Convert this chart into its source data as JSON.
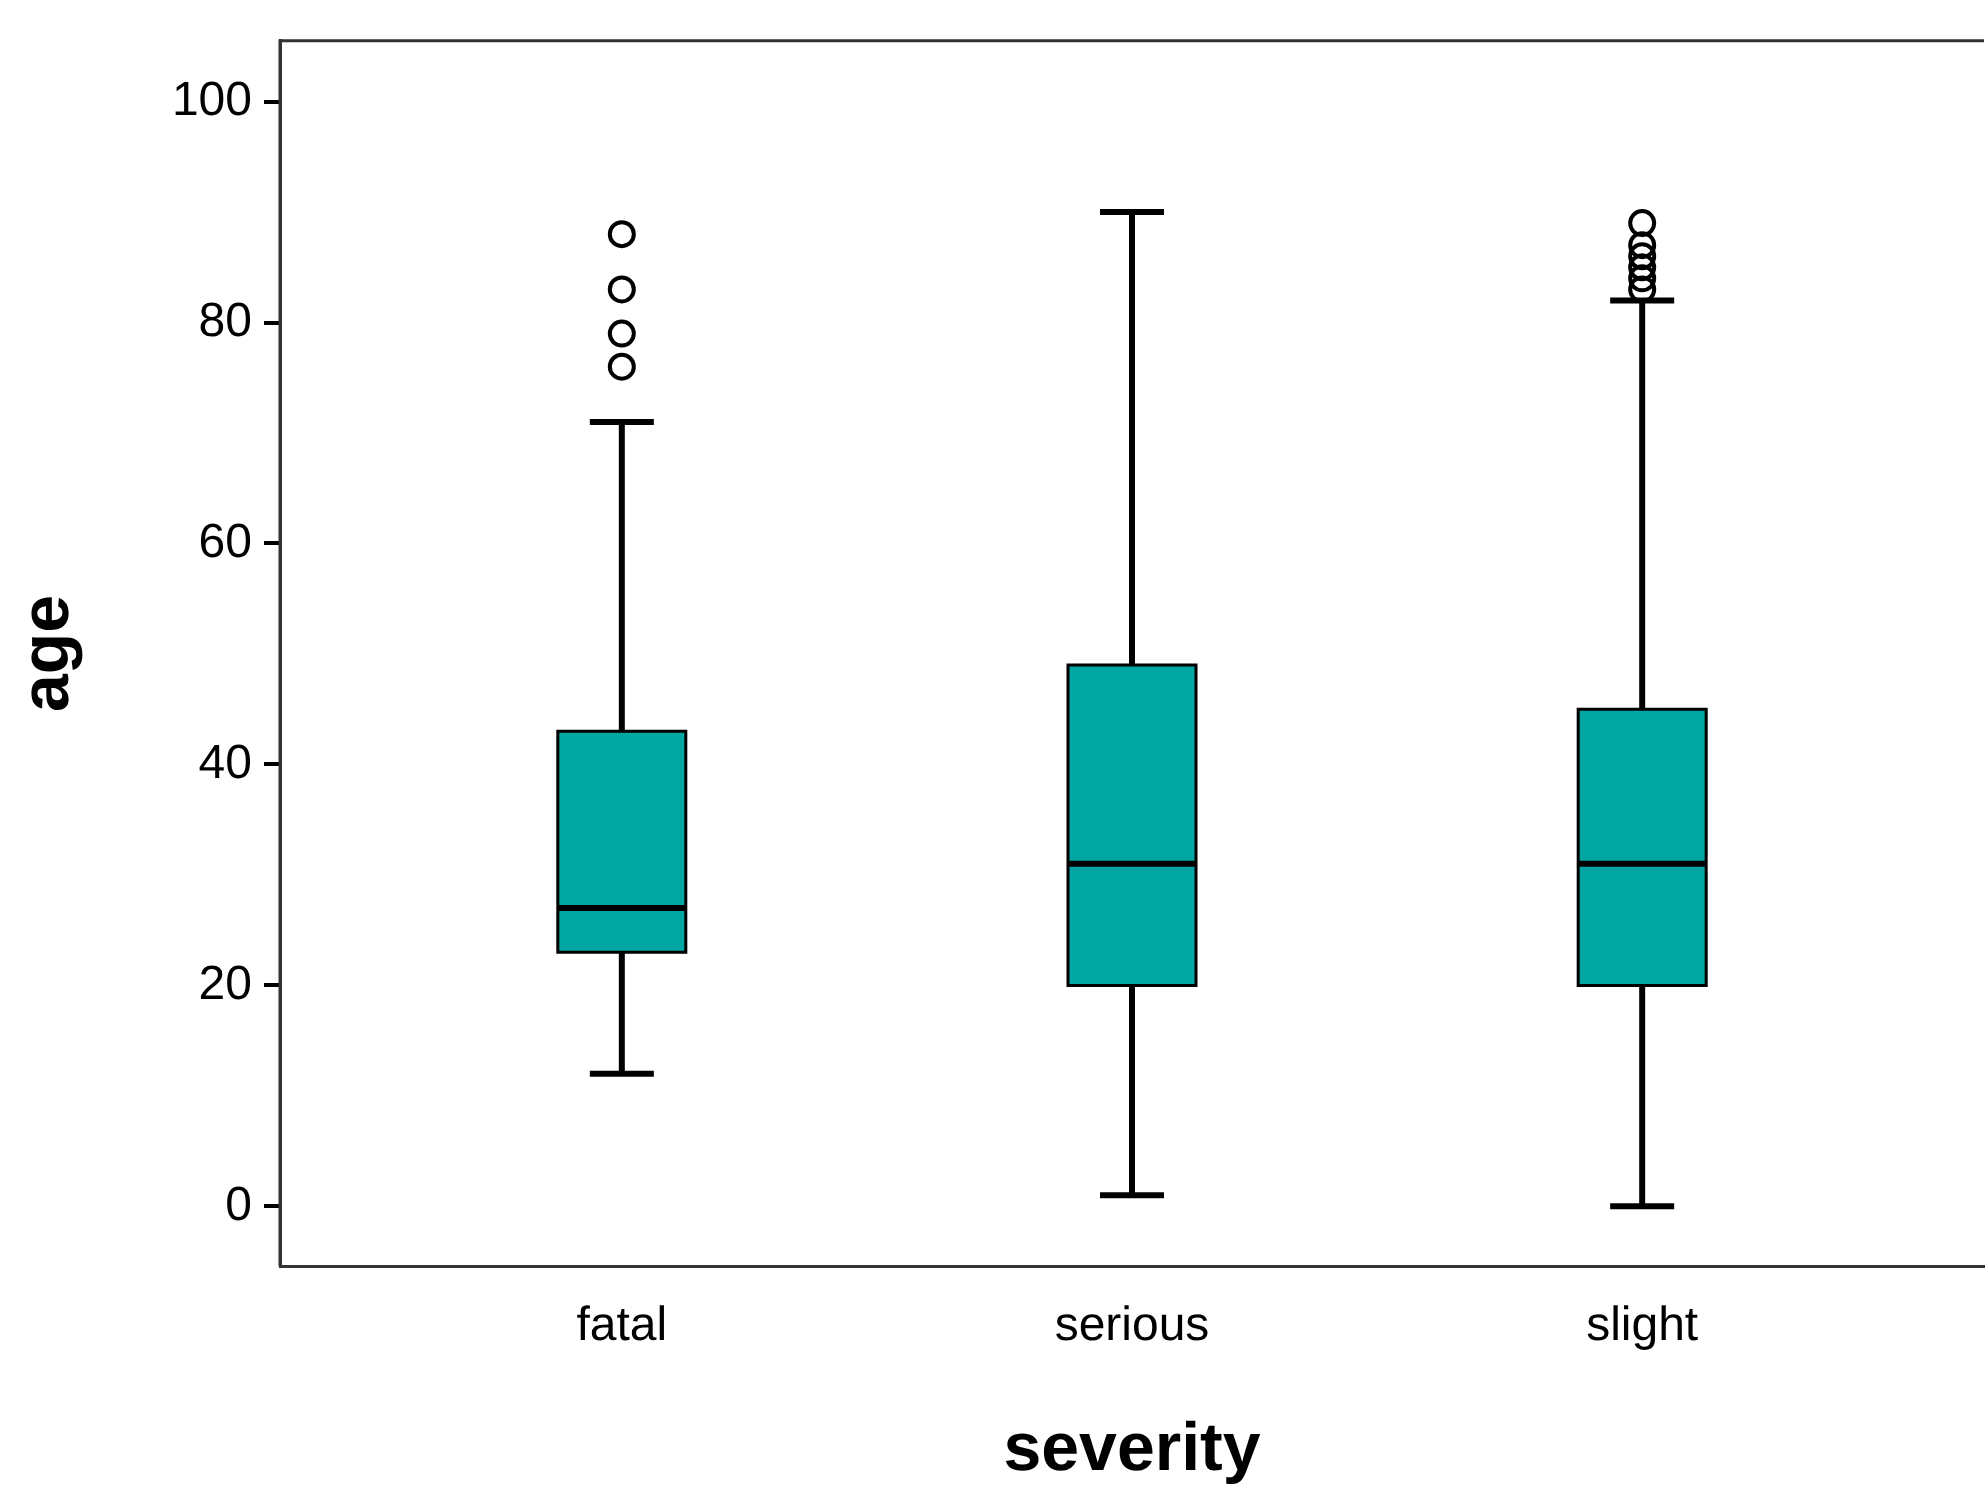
{
  "chart_data": {
    "type": "box",
    "xlabel": "severity",
    "ylabel": "age",
    "categories": [
      "fatal",
      "serious",
      "slight"
    ],
    "color": "#00a6a2",
    "boxes": [
      {
        "low": 12,
        "q1": 23,
        "median": 27,
        "q3": 43,
        "high": 71,
        "outliers": [
          76,
          79,
          83,
          88
        ]
      },
      {
        "low": 1,
        "q1": 20,
        "median": 31,
        "q3": 49,
        "high": 90
      },
      {
        "low": 0,
        "q1": 20,
        "median": 31,
        "q3": 45,
        "high": 82,
        "outliers": [
          83,
          84,
          85,
          86,
          87,
          89
        ]
      }
    ],
    "ylim": [
      -5.4,
      105.5
    ],
    "yticks": [
      0,
      20,
      40,
      60,
      80,
      100
    ],
    "grid": false,
    "legend": false,
    "marker": "circle"
  }
}
